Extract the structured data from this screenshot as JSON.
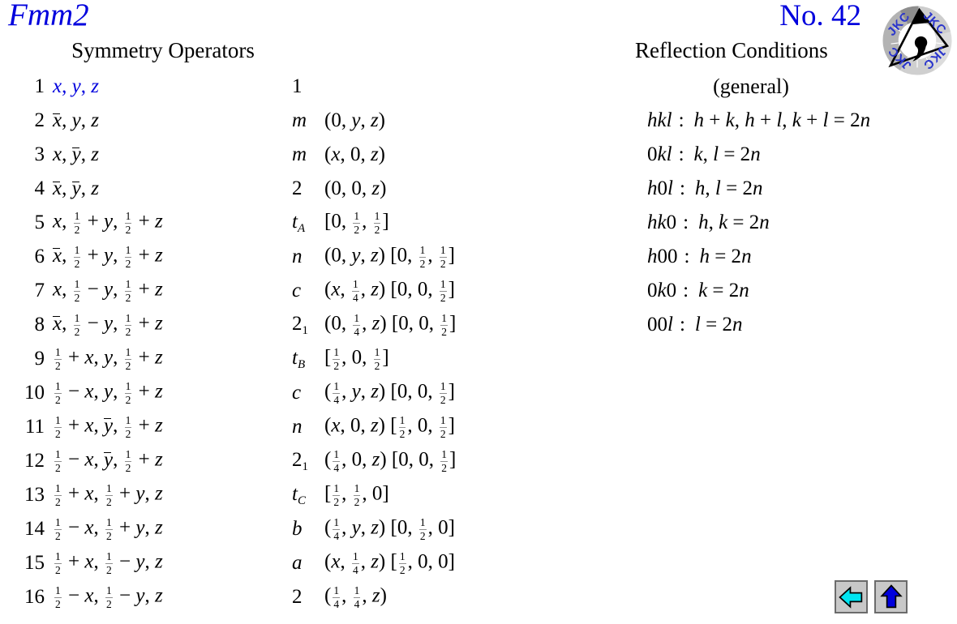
{
  "header": {
    "space_group": "Fmm2",
    "number_label": "No. 42",
    "left_heading": "Symmetry Operators",
    "right_heading": "Reflection Conditions",
    "logo_text": "JKC"
  },
  "symmetry_operators": {
    "rows": [
      {
        "num": "1",
        "coords": "x, y, z",
        "op": "1",
        "detail": "",
        "highlight": true
      },
      {
        "num": "2",
        "coords": "~x, y, z",
        "op": "m",
        "detail": "(0, y, z)"
      },
      {
        "num": "3",
        "coords": "x, ~y, z",
        "op": "m",
        "detail": "(x, 0, z)"
      },
      {
        "num": "4",
        "coords": "~x, ~y, z",
        "op": "2",
        "detail": "(0, 0, z)"
      },
      {
        "num": "5",
        "coords": "x, {1/2} + y, {1/2} + z",
        "op": "t_A",
        "detail": "[0, {1/2}, {1/2}]"
      },
      {
        "num": "6",
        "coords": "~x, {1/2} + y, {1/2} + z",
        "op": "n",
        "detail": "(0, y, z) [0, {1/2}, {1/2}]"
      },
      {
        "num": "7",
        "coords": "x, {1/2} − y, {1/2} + z",
        "op": "c",
        "detail": "(x, {1/4}, z) [0, 0, {1/2}]"
      },
      {
        "num": "8",
        "coords": "~x, {1/2} − y, {1/2} + z",
        "op": "2_1",
        "detail": "(0, {1/4}, z) [0, 0, {1/2}]"
      },
      {
        "num": "9",
        "coords": "{1/2} + x, y, {1/2} + z",
        "op": "t_B",
        "detail": "[{1/2}, 0, {1/2}]"
      },
      {
        "num": "10",
        "coords": "{1/2} − x, y, {1/2} + z",
        "op": "c",
        "detail": "({1/4}, y, z) [0, 0, {1/2}]"
      },
      {
        "num": "11",
        "coords": "{1/2} + x, ~y, {1/2} + z",
        "op": "n",
        "detail": "(x, 0, z) [{1/2}, 0, {1/2}]"
      },
      {
        "num": "12",
        "coords": "{1/2} − x, ~y, {1/2} + z",
        "op": "2_1",
        "detail": "({1/4}, 0, z) [0, 0, {1/2}]"
      },
      {
        "num": "13",
        "coords": "{1/2} + x, {1/2} + y, z",
        "op": "t_C",
        "detail": "[{1/2}, {1/2}, 0]"
      },
      {
        "num": "14",
        "coords": "{1/2} − x, {1/2} + y, z",
        "op": "b",
        "detail": "({1/4}, y, z) [0, {1/2}, 0]"
      },
      {
        "num": "15",
        "coords": "{1/2} + x, {1/2} − y, z",
        "op": "a",
        "detail": "(x, {1/4}, z) [{1/2}, 0, 0]"
      },
      {
        "num": "16",
        "coords": "{1/2} − x, {1/2} − y, z",
        "op": "2",
        "detail": "({1/4}, {1/4}, z)"
      }
    ]
  },
  "reflection_conditions": {
    "general_label": "(general)",
    "colon": ":",
    "rows": [
      {
        "zone": "hkl",
        "condition": "h + k, h + l, k + l = 2n"
      },
      {
        "zone": "0kl",
        "condition": "k, l = 2n"
      },
      {
        "zone": "h0l",
        "condition": "h, l = 2n"
      },
      {
        "zone": "hk0",
        "condition": "h, k = 2n"
      },
      {
        "zone": "h00",
        "condition": "h = 2n"
      },
      {
        "zone": "0k0",
        "condition": "k = 2n"
      },
      {
        "zone": "00l",
        "condition": "l = 2n"
      }
    ]
  },
  "nav": {
    "back_button": "left-arrow",
    "up_button": "up-arrow"
  },
  "colors": {
    "accent_blue": "#0000dd",
    "text_black": "#000000",
    "fraction_bar_gray": "#8f8f8f",
    "button_face": "#c8c8c8",
    "button_border": "#6b6b6b",
    "back_arrow_fill": "#00e5f2",
    "up_arrow_fill": "#0000dd",
    "logo_blue": "#2a35cc"
  }
}
